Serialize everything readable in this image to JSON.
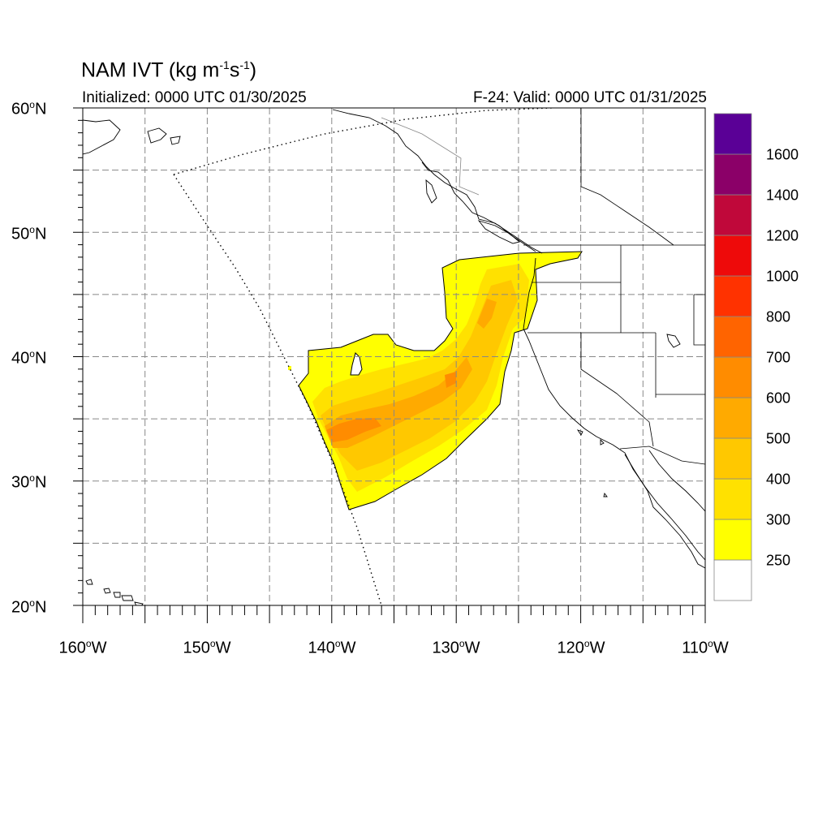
{
  "map": {
    "title_main": "NAM IVT (kg m",
    "title_sup1": "-1",
    "title_mid": "s",
    "title_sup2": "-1",
    "title_end": ")",
    "initialized": "Initialized: 0000 UTC 01/30/2025",
    "valid": "F-24: Valid: 0000 UTC 01/31/2025",
    "deg_symbol": "o",
    "lat_labels": [
      "60",
      "50",
      "40",
      "30",
      "20"
    ],
    "lat_suffix": "N",
    "lon_labels": [
      "160",
      "150",
      "140",
      "130",
      "120",
      "110"
    ],
    "lon_suffix": "W",
    "extent": {
      "lon_min": -160,
      "lon_max": -110,
      "lat_min": 20,
      "lat_max": 60
    },
    "gridlines": "dashed, every 5 degrees",
    "colorbar": {
      "labels": [
        "250",
        "300",
        "400",
        "500",
        "600",
        "700",
        "800",
        "1000",
        "1200",
        "1400",
        "1600"
      ],
      "colors": [
        "#ffffff",
        "#ffff00",
        "#ffe100",
        "#ffc800",
        "#ffaa00",
        "#ff8c00",
        "#ff6400",
        "#ff3200",
        "#ee0a0a",
        "#c0083a",
        "#8b0068",
        "#5a0096"
      ]
    },
    "field_colors": {
      "low": "#ffff00",
      "mid": "#ffe100",
      "high": "#ffc800",
      "peak": "#ffaa00",
      "max": "#ff8c00"
    }
  }
}
